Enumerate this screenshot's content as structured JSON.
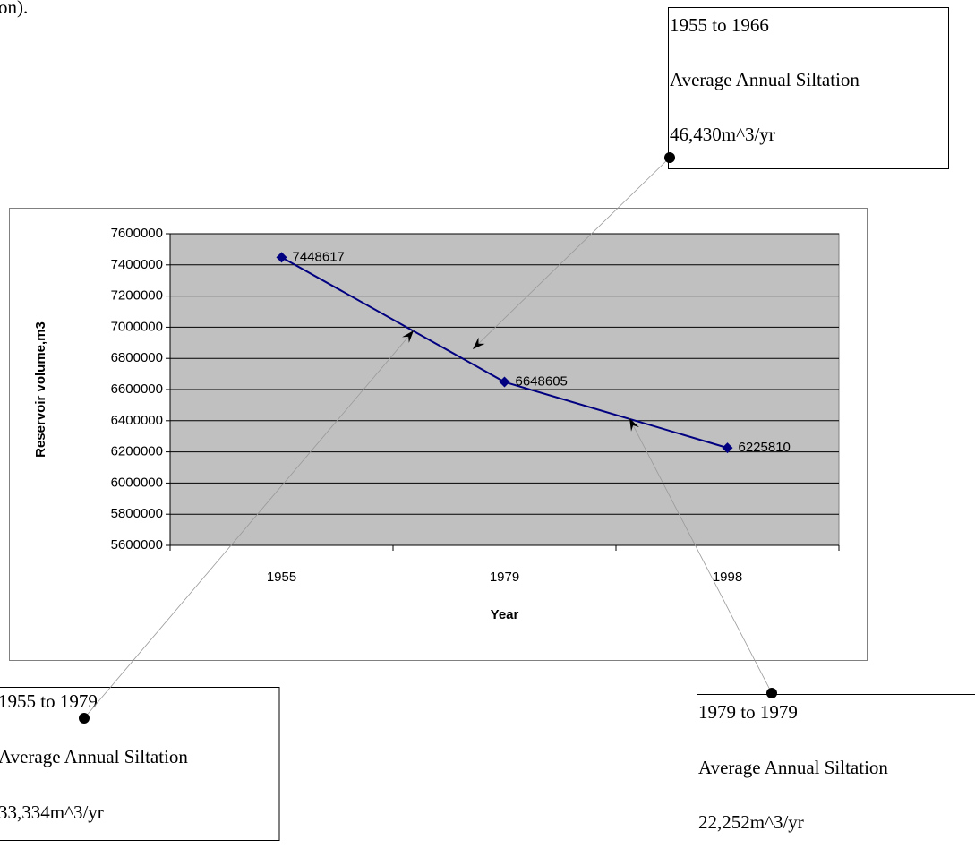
{
  "page_text": "on).",
  "chart_data": {
    "type": "line",
    "categories": [
      "1955",
      "1979",
      "1998"
    ],
    "series": [
      {
        "name": null,
        "color": "#000080",
        "values": [
          7448617,
          6648605,
          6225810
        ]
      }
    ],
    "ylim": [
      5600000,
      7600000
    ],
    "yticks": [
      5600000,
      5800000,
      6000000,
      6200000,
      6400000,
      6600000,
      6800000,
      7000000,
      7200000,
      7400000,
      7600000
    ],
    "xlabel": "Year",
    "ylabel": "Reservoir volume,m3",
    "grid": true,
    "plot_background": "#c0c0c0",
    "annotations": [
      {
        "lines": [
          "1955 to 1966",
          "Average Annual Siltation",
          "46,430m^3/yr"
        ]
      },
      {
        "lines": [
          "1955 to 1979",
          "Average Annual Siltation",
          "33,334m^3/yr"
        ]
      },
      {
        "lines": [
          "1979 to 1979",
          "Average Annual Siltation",
          "22,252m^3/yr"
        ]
      }
    ]
  }
}
